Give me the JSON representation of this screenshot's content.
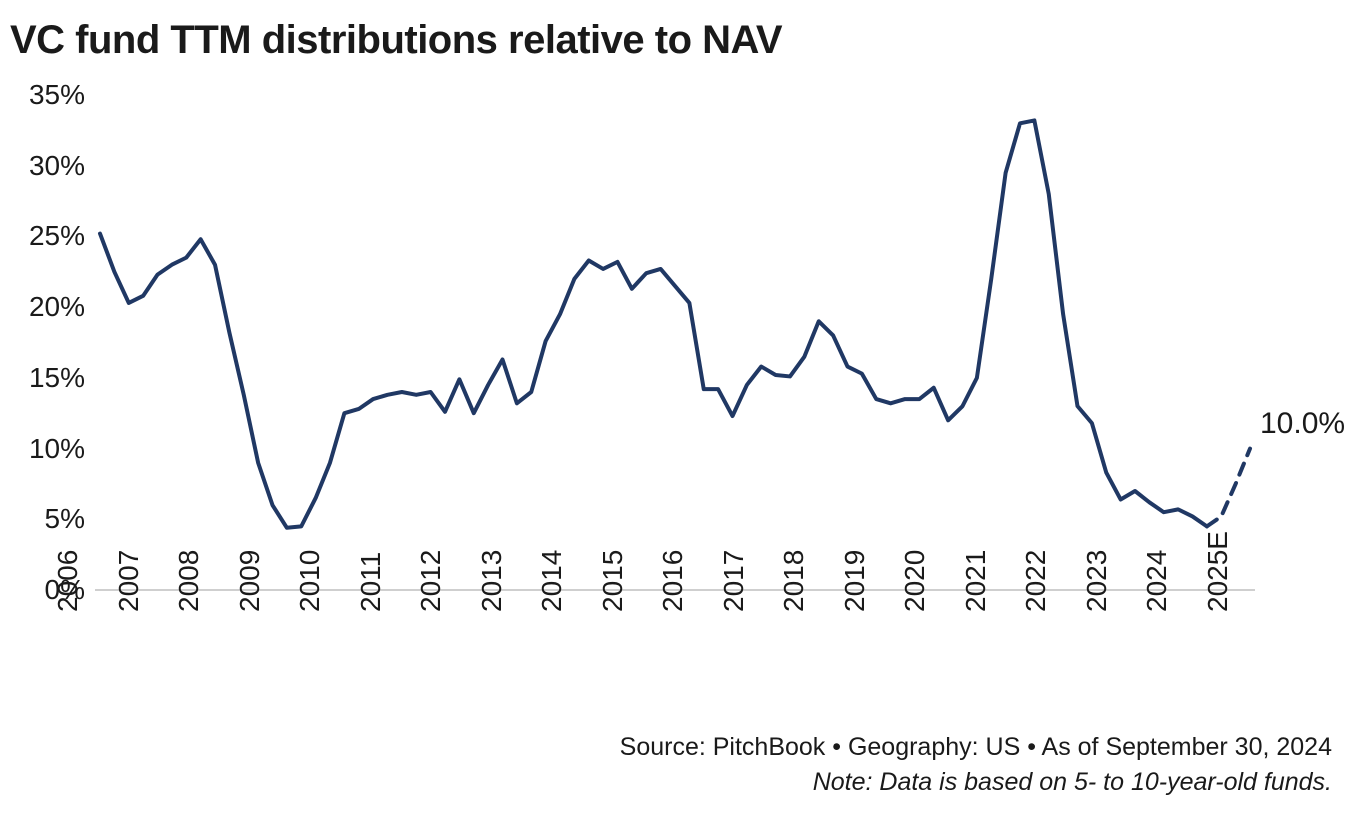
{
  "chart": {
    "type": "line",
    "title": "VC fund TTM distributions relative to NAV",
    "title_fontsize": 40,
    "title_fontweight": 700,
    "background_color": "#ffffff",
    "line_color": "#203864",
    "line_width": 4,
    "axis_color": "#bfbfbf",
    "axis_width": 1.5,
    "text_color": "#1a1a1a",
    "label_fontsize": 28,
    "y": {
      "min": 0,
      "max": 35,
      "tick_step": 5,
      "ticks": [
        0,
        5,
        10,
        15,
        20,
        25,
        30,
        35
      ],
      "tick_labels": [
        "0%",
        "5%",
        "10%",
        "15%",
        "20%",
        "25%",
        "30%",
        "35%"
      ]
    },
    "x": {
      "labels": [
        "2006",
        "2007",
        "2008",
        "2009",
        "2010",
        "2011",
        "2012",
        "2013",
        "2014",
        "2015",
        "2016",
        "2017",
        "2018",
        "2019",
        "2020",
        "2021",
        "2022",
        "2023",
        "2024",
        "2025E"
      ]
    },
    "solid_series": {
      "values": [
        25.2,
        22.5,
        20.3,
        20.8,
        22.3,
        23.0,
        23.5,
        24.8,
        23.0,
        18.2,
        13.8,
        9.0,
        6.0,
        4.4,
        4.5,
        6.5,
        9.0,
        12.5,
        12.8,
        13.5,
        13.8,
        14.0,
        13.8,
        14.0,
        12.6,
        14.9,
        12.5,
        14.5,
        16.3,
        13.2,
        14.0,
        17.6,
        19.5,
        22.0,
        23.3,
        22.7,
        23.2,
        21.3,
        22.4,
        22.7,
        21.5,
        20.3,
        14.2,
        14.2,
        12.3,
        14.5,
        15.8,
        15.2,
        15.1,
        16.5,
        19.0,
        18.0,
        15.8,
        15.3,
        13.5,
        13.2,
        13.5,
        13.5,
        14.3,
        12.0,
        13.0,
        15.0,
        22.0,
        29.5,
        33.0,
        33.2,
        28.0,
        19.5,
        13.0,
        11.8,
        8.3,
        6.4,
        7.0,
        6.2,
        5.5,
        5.7,
        5.2,
        4.5
      ]
    },
    "dashed_series": {
      "start_index": 77,
      "values": [
        4.5,
        5.2,
        7.5,
        10.0
      ],
      "dash_pattern": "12 9"
    },
    "end_label": {
      "text": "10.0%",
      "fontsize": 30
    },
    "footer": {
      "source_line": "Source: PitchBook  •  Geography: US  •  As of September 30, 2024",
      "note_line": "Note: Data is based on 5- to 10-year-old funds.",
      "fontsize": 25
    }
  }
}
